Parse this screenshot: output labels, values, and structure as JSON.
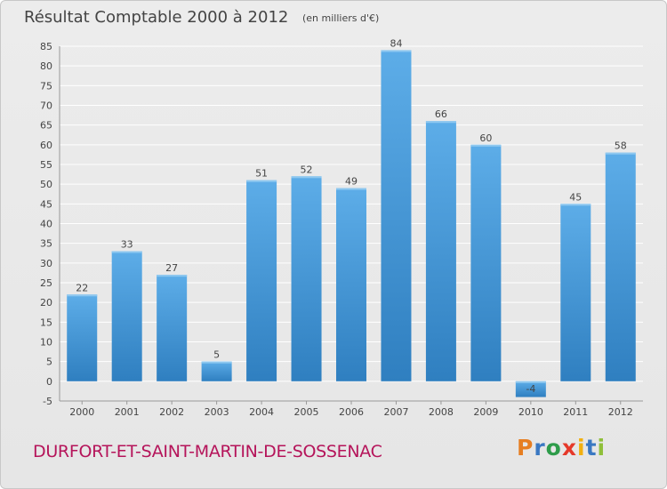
{
  "header": {
    "title": "Résultat Comptable 2000 à 2012",
    "subtitle": "(en milliers d'€)"
  },
  "footer": {
    "commune": "DURFORT-ET-SAINT-MARTIN-DE-SOSSENAC",
    "logo": "Proxiti"
  },
  "colors": {
    "bar_light": "#5dade8",
    "bar_dark": "#2f7fc0",
    "commune": "#b5145a"
  },
  "chart_data": {
    "type": "bar",
    "title": "Résultat Comptable 2000 à 2012",
    "subtitle": "(en milliers d'€)",
    "xlabel": "",
    "ylabel": "",
    "categories": [
      "2000",
      "2001",
      "2002",
      "2003",
      "2004",
      "2005",
      "2006",
      "2007",
      "2008",
      "2009",
      "2010",
      "2011",
      "2012"
    ],
    "values": [
      22,
      33,
      27,
      5,
      51,
      52,
      49,
      84,
      66,
      60,
      -4,
      45,
      58
    ],
    "data_labels": [
      "22",
      "33",
      "27",
      "5",
      "51",
      "52",
      "49",
      "84",
      "66",
      "60",
      "-4",
      "45",
      "58"
    ],
    "ylim": [
      -5,
      85
    ],
    "yticks": [
      -5,
      0,
      5,
      10,
      15,
      20,
      25,
      30,
      35,
      40,
      45,
      50,
      55,
      60,
      65,
      70,
      75,
      80,
      85
    ],
    "grid": true
  }
}
